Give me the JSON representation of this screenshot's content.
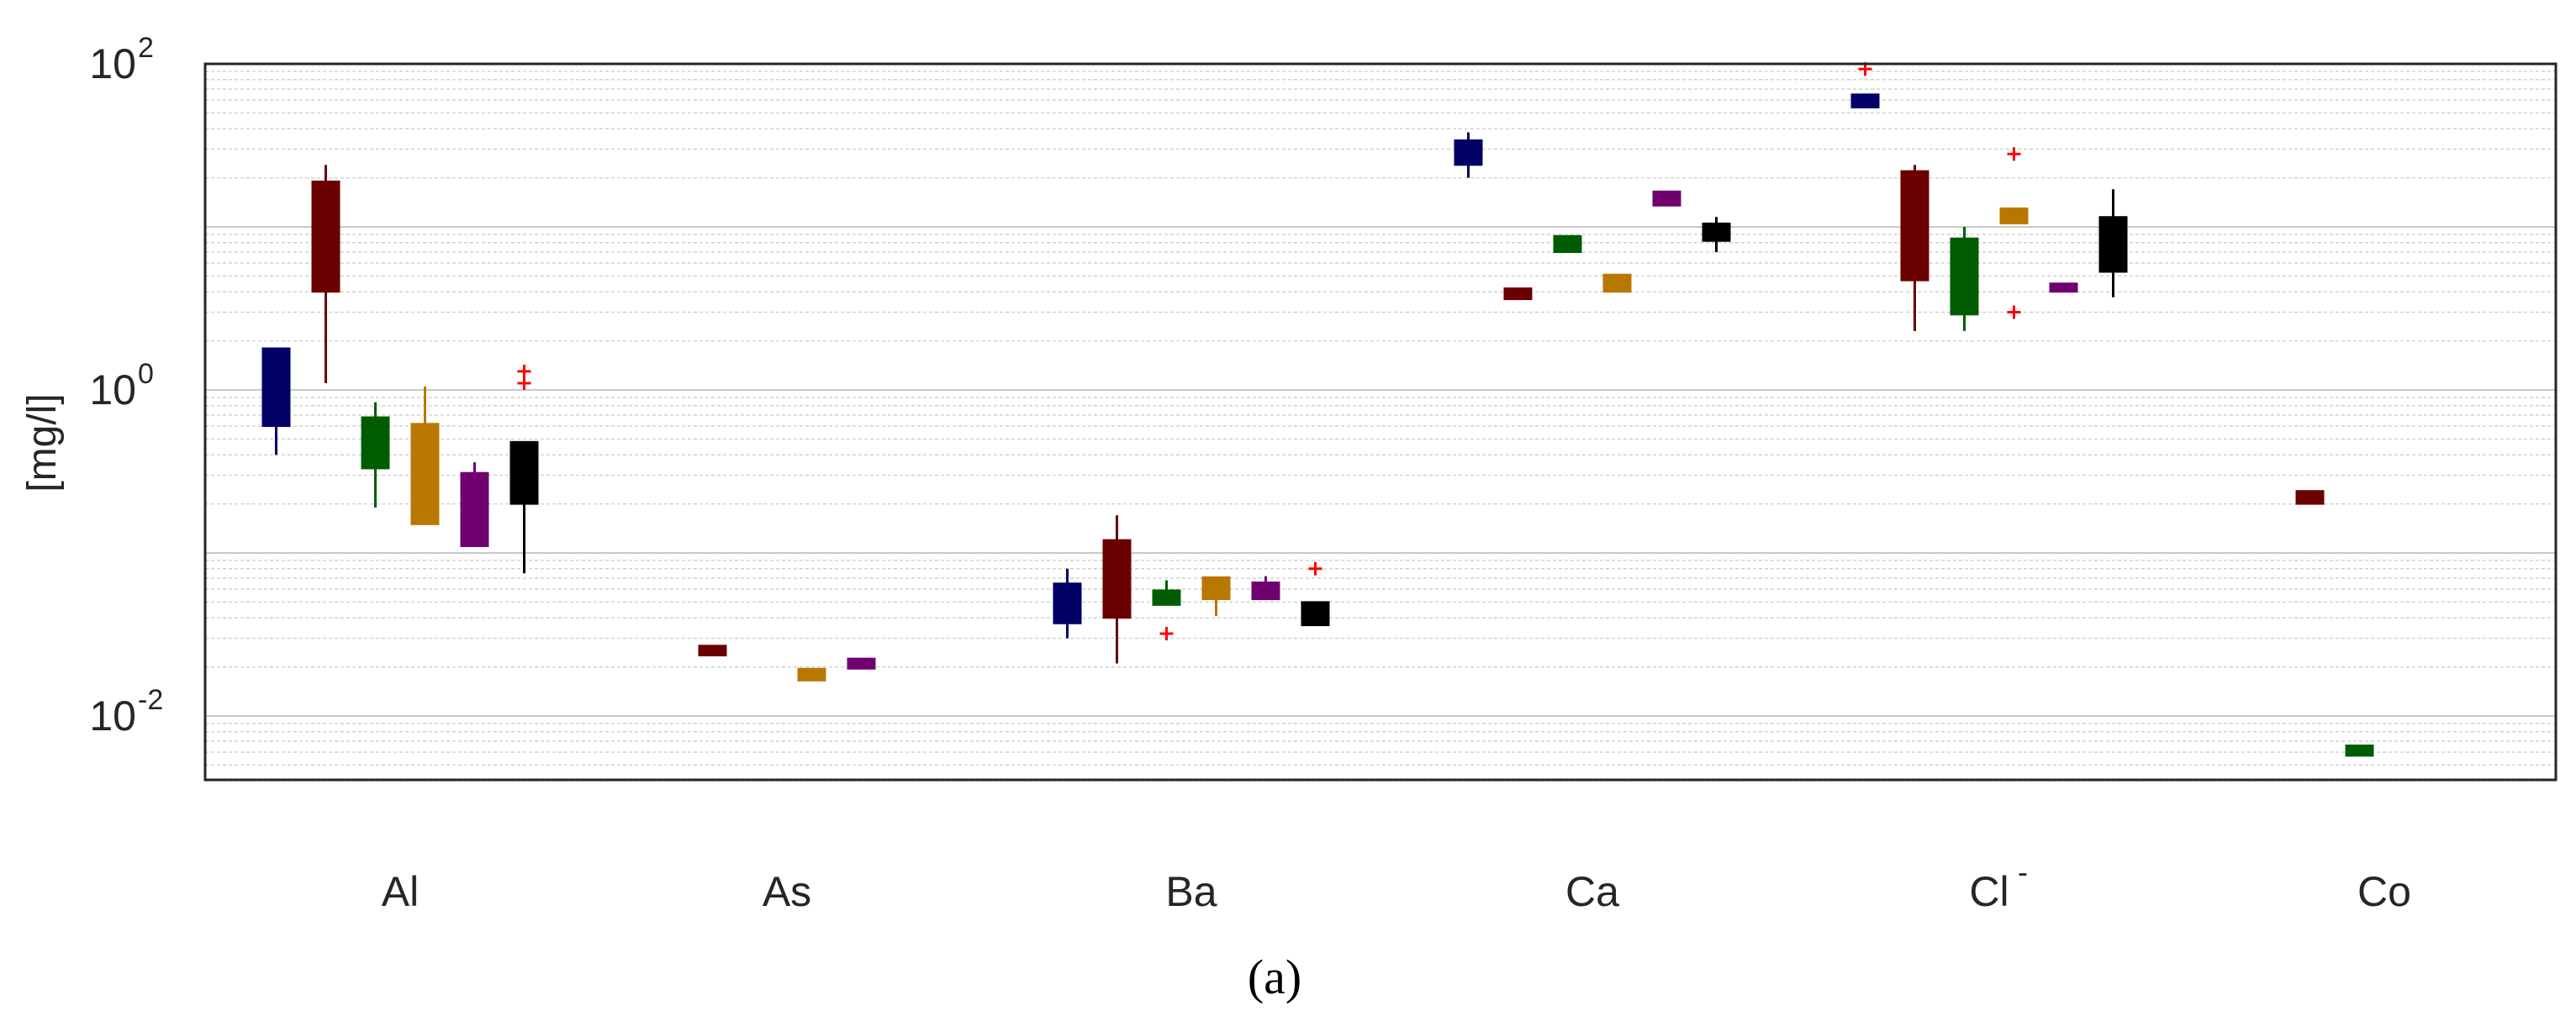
{
  "chart_data": {
    "type": "box",
    "ylabel": "[mg/l]",
    "yscale": "log",
    "ylim": [
      0.004,
      100
    ],
    "y_tick_labels": [
      {
        "base": "10",
        "exp": "2",
        "value": 100
      },
      {
        "base": "10",
        "exp": "0",
        "value": 1
      },
      {
        "base": "10",
        "exp": "-2",
        "value": 0.01
      }
    ],
    "categories": [
      {
        "base": "Al",
        "sup": ""
      },
      {
        "base": "As",
        "sup": ""
      },
      {
        "base": "Ba",
        "sup": ""
      },
      {
        "base": "Ca",
        "sup": ""
      },
      {
        "base": "Cl",
        "sup": "-"
      },
      {
        "base": "Co",
        "sup": ""
      }
    ],
    "series_colors": [
      "#000066",
      "#6b0000",
      "#005c00",
      "#b87800",
      "#700070",
      "#000000"
    ],
    "outlier_color": "#ff0000",
    "grid": true,
    "caption": "(a)",
    "boxes": [
      {
        "category": "Al",
        "series": 0,
        "whisker_low": 0.4,
        "q1": 0.6,
        "q3": 1.8,
        "whisker_high": 1.8,
        "outliers": []
      },
      {
        "category": "Al",
        "series": 1,
        "whisker_low": 1.1,
        "q1": 4.0,
        "q3": 19,
        "whisker_high": 24,
        "outliers": []
      },
      {
        "category": "Al",
        "series": 2,
        "whisker_low": 0.19,
        "q1": 0.33,
        "q3": 0.68,
        "whisker_high": 0.84,
        "outliers": []
      },
      {
        "category": "Al",
        "series": 3,
        "whisker_low": 0.15,
        "q1": 0.15,
        "q3": 0.62,
        "whisker_high": 1.05,
        "outliers": []
      },
      {
        "category": "Al",
        "series": 4,
        "whisker_low": 0.11,
        "q1": 0.11,
        "q3": 0.31,
        "whisker_high": 0.36,
        "outliers": []
      },
      {
        "category": "Al",
        "series": 5,
        "whisker_low": 0.075,
        "q1": 0.2,
        "q3": 0.48,
        "whisker_high": 0.48,
        "outliers": [
          1.1,
          1.3
        ]
      },
      {
        "category": "As",
        "series": 1,
        "whisker_low": 0.0235,
        "q1": 0.0235,
        "q3": 0.027,
        "whisker_high": 0.027,
        "outliers": []
      },
      {
        "category": "As",
        "series": 3,
        "whisker_low": 0.0165,
        "q1": 0.0165,
        "q3": 0.0195,
        "whisker_high": 0.0195,
        "outliers": []
      },
      {
        "category": "As",
        "series": 4,
        "whisker_low": 0.0195,
        "q1": 0.0195,
        "q3": 0.0225,
        "whisker_high": 0.0225,
        "outliers": []
      },
      {
        "category": "Ba",
        "series": 0,
        "whisker_low": 0.03,
        "q1": 0.037,
        "q3": 0.065,
        "whisker_high": 0.08,
        "outliers": []
      },
      {
        "category": "Ba",
        "series": 1,
        "whisker_low": 0.021,
        "q1": 0.04,
        "q3": 0.12,
        "whisker_high": 0.17,
        "outliers": []
      },
      {
        "category": "Ba",
        "series": 2,
        "whisker_low": 0.048,
        "q1": 0.048,
        "q3": 0.059,
        "whisker_high": 0.068,
        "outliers": [
          0.032
        ]
      },
      {
        "category": "Ba",
        "series": 3,
        "whisker_low": 0.041,
        "q1": 0.052,
        "q3": 0.071,
        "whisker_high": 0.071,
        "outliers": []
      },
      {
        "category": "Ba",
        "series": 4,
        "whisker_low": 0.052,
        "q1": 0.052,
        "q3": 0.066,
        "whisker_high": 0.072,
        "outliers": []
      },
      {
        "category": "Ba",
        "series": 5,
        "whisker_low": 0.036,
        "q1": 0.036,
        "q3": 0.05,
        "whisker_high": 0.05,
        "outliers": [
          0.08
        ]
      },
      {
        "category": "Ca",
        "series": 0,
        "whisker_low": 20,
        "q1": 24,
        "q3": 34,
        "whisker_high": 38,
        "outliers": []
      },
      {
        "category": "Ca",
        "series": 1,
        "whisker_low": 3.6,
        "q1": 3.6,
        "q3": 4.2,
        "whisker_high": 4.2,
        "outliers": []
      },
      {
        "category": "Ca",
        "series": 2,
        "whisker_low": 7.0,
        "q1": 7.0,
        "q3": 8.8,
        "whisker_high": 8.8,
        "outliers": []
      },
      {
        "category": "Ca",
        "series": 3,
        "whisker_low": 4.0,
        "q1": 4.0,
        "q3": 5.1,
        "whisker_high": 5.1,
        "outliers": []
      },
      {
        "category": "Ca",
        "series": 4,
        "whisker_low": 13.5,
        "q1": 13.5,
        "q3": 16.5,
        "whisker_high": 16.5,
        "outliers": []
      },
      {
        "category": "Ca",
        "series": 5,
        "whisker_low": 7.0,
        "q1": 8.2,
        "q3": 10.5,
        "whisker_high": 11.5,
        "outliers": []
      },
      {
        "category": "Cl-",
        "series": 0,
        "whisker_low": 54,
        "q1": 54,
        "q3": 65,
        "whisker_high": 65,
        "outliers": [
          93
        ]
      },
      {
        "category": "Cl-",
        "series": 1,
        "whisker_low": 2.3,
        "q1": 4.7,
        "q3": 22,
        "whisker_high": 24,
        "outliers": []
      },
      {
        "category": "Cl-",
        "series": 2,
        "whisker_low": 2.3,
        "q1": 2.9,
        "q3": 8.5,
        "whisker_high": 10,
        "outliers": []
      },
      {
        "category": "Cl-",
        "series": 3,
        "whisker_low": 10.5,
        "q1": 10.5,
        "q3": 13,
        "whisker_high": 13,
        "outliers": [
          28,
          3.0
        ]
      },
      {
        "category": "Cl-",
        "series": 4,
        "whisker_low": 4.0,
        "q1": 4.0,
        "q3": 4.5,
        "whisker_high": 4.5,
        "outliers": []
      },
      {
        "category": "Cl-",
        "series": 5,
        "whisker_low": 3.7,
        "q1": 5.3,
        "q3": 11.5,
        "whisker_high": 17,
        "outliers": []
      },
      {
        "category": "Co",
        "series": 1,
        "whisker_low": 0.2,
        "q1": 0.2,
        "q3": 0.24,
        "whisker_high": 0.24,
        "outliers": []
      },
      {
        "category": "Co",
        "series": 2,
        "whisker_low": 0.0057,
        "q1": 0.0057,
        "q3": 0.0066,
        "whisker_high": 0.0066,
        "outliers": []
      }
    ]
  }
}
